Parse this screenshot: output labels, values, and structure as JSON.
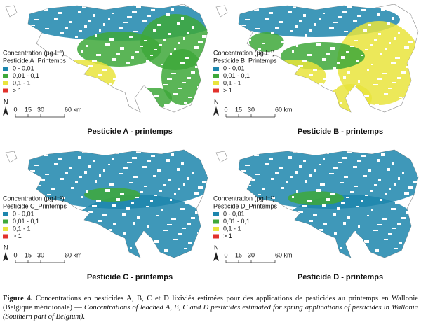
{
  "legend": {
    "title": "Concentration (µg·l⁻¹)",
    "classes": [
      {
        "label": "0 - 0,01",
        "color": "#1d86ad"
      },
      {
        "label": "0,01 - 0,1",
        "color": "#3ea83a"
      },
      {
        "label": "0,1 - 1",
        "color": "#e9e43c"
      },
      {
        "label": "> 1",
        "color": "#e2312b"
      }
    ]
  },
  "north": "N",
  "scale": [
    "0",
    "15",
    "30",
    "60 km"
  ],
  "panels": [
    {
      "subtitle": "Pesticide A_Printemps",
      "caption": "Pesticide A - printemps"
    },
    {
      "subtitle": "Pesticide B_Printemps",
      "caption": "Pesticide B - printemps"
    },
    {
      "subtitle": "Pesticide C_Printemps",
      "caption": "Pesticide C - printemps"
    },
    {
      "subtitle": "Pesticide D_Printemps",
      "caption": "Pesticide D - printemps"
    }
  ],
  "figure_caption": {
    "label": "Figure 4.",
    "text_fr": "Concentrations en pesticides A, B, C et D lixiviés estimées pour des applications de pesticides au printemps en Wallonie (Belgique méridionale) —",
    "text_en": "Concentrations of leached A, B, C and D pesticides estimated for spring applications of pesticides in Wallonia (Southern part of Belgium)."
  }
}
